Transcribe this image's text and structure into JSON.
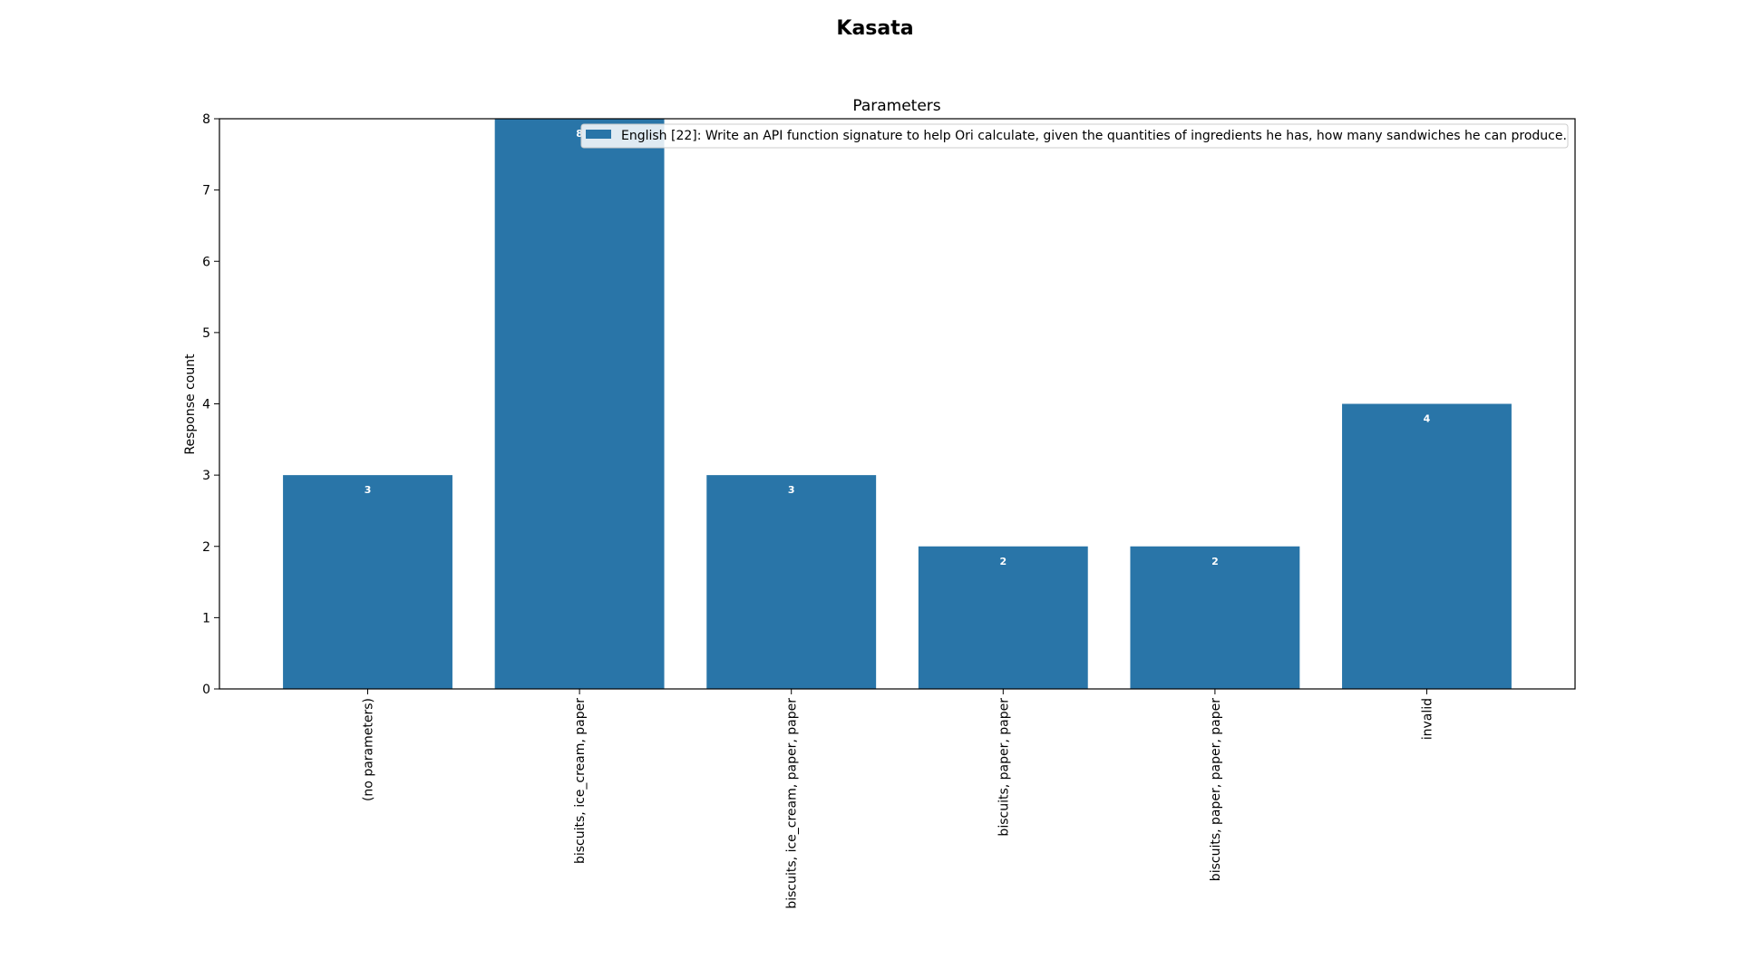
{
  "figure": {
    "suptitle": "Kasata"
  },
  "chart_data": {
    "type": "bar",
    "title": "Parameters",
    "xlabel": "",
    "ylabel": "Response count",
    "categories": [
      "(no parameters)",
      "biscuits, ice_cream, paper",
      "biscuits, ice_cream, paper, paper",
      "biscuits, paper, paper",
      "biscuits, paper, paper, paper",
      "invalid"
    ],
    "series": [
      {
        "name": "English [22]: Write an API function signature to help Ori calculate, given the quantities of ingredients he has, how many sandwiches he can produce.",
        "values": [
          3,
          8,
          3,
          2,
          2,
          4
        ],
        "color": "#2975a8"
      }
    ],
    "ylim": [
      0,
      8
    ],
    "yticks": [
      0,
      1,
      2,
      3,
      4,
      5,
      6,
      7,
      8
    ],
    "data_labels": [
      "3",
      "8",
      "3",
      "2",
      "2",
      "4"
    ],
    "grid": false,
    "legend_position": "top-right"
  }
}
